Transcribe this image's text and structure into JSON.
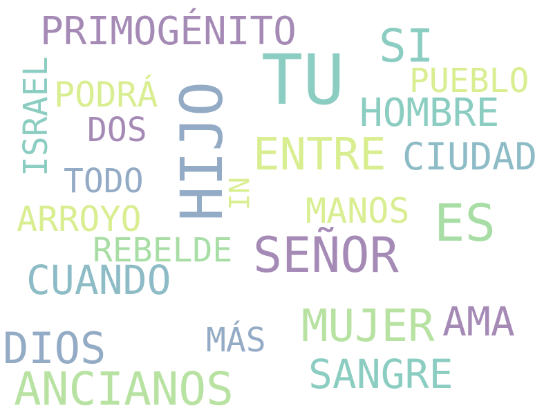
{
  "colors": {
    "background": "#ffffff",
    "purple": "#a58ab6",
    "teal": "#8ccdc2",
    "slate_blue": "#94abc6",
    "lime": "#d9ee91",
    "green": "#a8dea6",
    "light_green": "#b8e2a2",
    "steel_teal": "#8dbcc6"
  },
  "words": {
    "primogenito": "PRIMOGÉNITO",
    "tu": "TU",
    "si": "SI",
    "israel": "ISRAEL",
    "podra": "PODRÁ",
    "hijo": "HIJO",
    "pueblo": "PUEBLO",
    "hombre": "HOMBRE",
    "dos": "DOS",
    "entre": "ENTRE",
    "ciudad": "CIUDAD",
    "todo": "TODO",
    "ni": "NI",
    "arroyo": "ARROYO",
    "manos": "MANOS",
    "es": "ES",
    "rebelde": "REBELDE",
    "senor": "SEÑOR",
    "cuando": "CUANDO",
    "mujer": "MUJER",
    "ama": "AMA",
    "dios": "DIOS",
    "mas": "MÁS",
    "sangre": "SANGRE",
    "ancianos": "ANCIANOS"
  }
}
